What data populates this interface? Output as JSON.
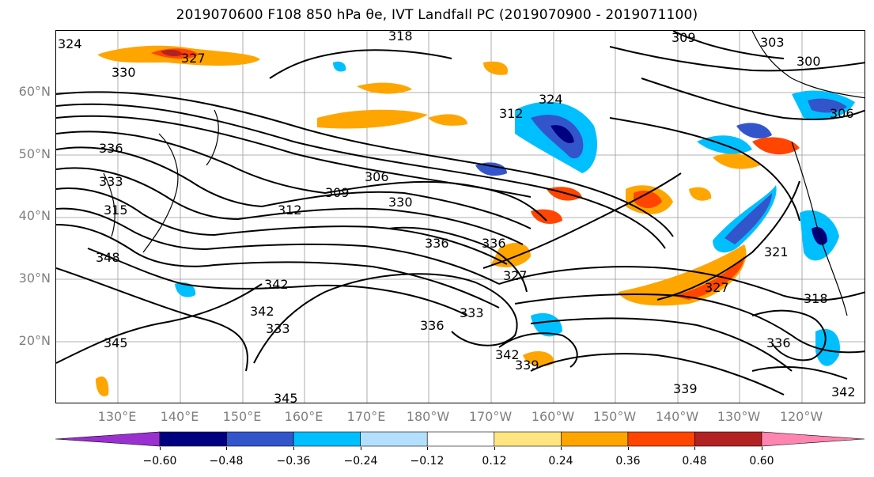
{
  "title": "2019070600 F108 850 hPa θe, IVT Landfall PC (2019070900 - 2019071100)",
  "lat_labels": [
    "60°N",
    "50°N",
    "40°N",
    "30°N",
    "20°N"
  ],
  "lon_labels": [
    "130°E",
    "140°E",
    "150°E",
    "160°E",
    "170°E",
    "180°W",
    "170°W",
    "160°W",
    "150°W",
    "140°W",
    "130°W",
    "120°W"
  ],
  "contour_labels": [
    "324",
    "318",
    "330",
    "327",
    "309",
    "303",
    "300",
    "306",
    "312",
    "324",
    "336",
    "333",
    "315",
    "306",
    "309",
    "312",
    "330",
    "336",
    "327",
    "321",
    "342",
    "348",
    "342",
    "345",
    "333",
    "336",
    "333",
    "336",
    "342",
    "339",
    "327",
    "318",
    "336",
    "345",
    "339",
    "342"
  ],
  "colorbar": {
    "ticks": [
      "−0.60",
      "−0.48",
      "−0.36",
      "−0.24",
      "−0.12",
      "0.12",
      "0.24",
      "0.36",
      "0.48",
      "0.60"
    ],
    "colors": [
      "#9a30d0",
      "#000080",
      "#3355cc",
      "#00bfff",
      "#b3e0ff",
      "#ffffff",
      "#ffe680",
      "#ffa500",
      "#ff4500",
      "#b22222",
      "#ff85b0"
    ]
  },
  "map": {
    "region": "North Pacific",
    "features": [
      "coastlines",
      "gridlines",
      "theta-e contours",
      "IVT PC shading"
    ]
  }
}
